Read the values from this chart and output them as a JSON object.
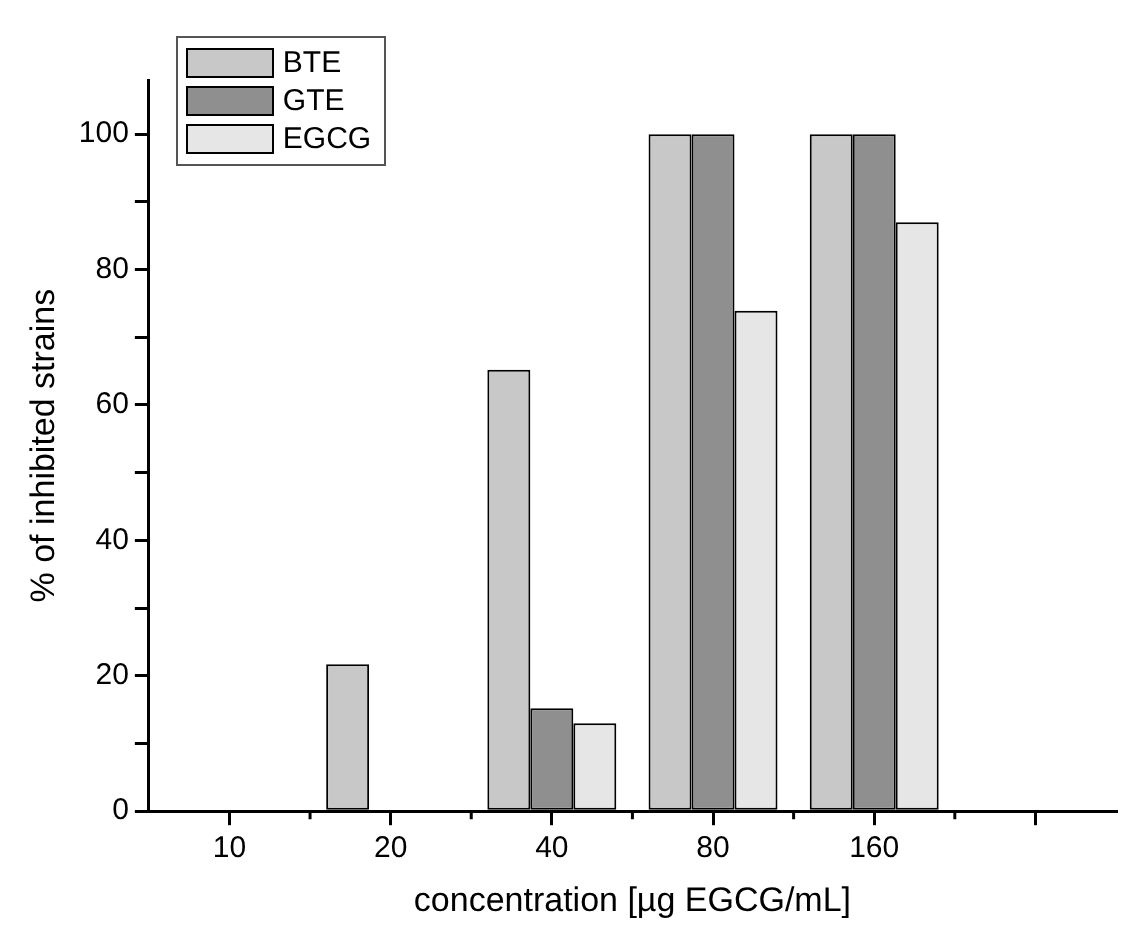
{
  "chart_data": {
    "type": "bar",
    "xlabel": "concentration [µg EGCG/mL]",
    "ylabel": "% of inhibited strains",
    "categories": [
      "10",
      "20",
      "40",
      "80",
      "160",
      null
    ],
    "series": [
      {
        "name": "BTE",
        "color": "#c8c8c8",
        "values": [
          0,
          21.7,
          65.2,
          100,
          100,
          null
        ]
      },
      {
        "name": "GTE",
        "color": "#8f8f8f",
        "values": [
          0,
          0,
          15.2,
          100,
          100,
          null
        ]
      },
      {
        "name": "EGCG",
        "color": "#e6e6e6",
        "values": [
          0,
          0,
          13,
          73.9,
          87,
          null
        ]
      }
    ],
    "ylim": [
      0,
      108
    ],
    "yticks": [
      0,
      {
        "value": 10,
        "label": null
      },
      20,
      {
        "value": 30,
        "label": null
      },
      40,
      {
        "value": 50,
        "label": null
      },
      60,
      {
        "value": 70,
        "label": null
      },
      80,
      {
        "value": 90,
        "label": null
      },
      100
    ],
    "grid": false,
    "legend": "top left"
  }
}
